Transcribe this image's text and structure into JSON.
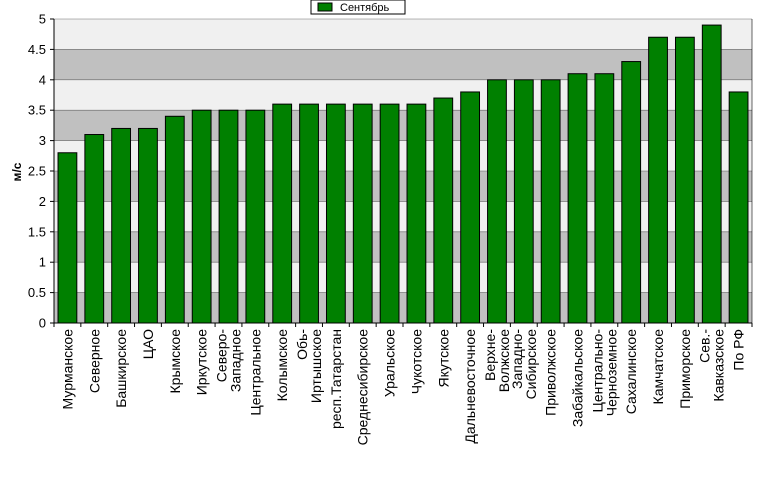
{
  "chart_data": {
    "type": "bar",
    "title": "",
    "xlabel": "",
    "ylabel": "м/с",
    "ylim": [
      0,
      5
    ],
    "yticks": [
      "0",
      "0.5",
      "1",
      "1.5",
      "2",
      "2.5",
      "3",
      "3.5",
      "4",
      "4.5",
      "5"
    ],
    "grid": true,
    "legend_position": "top-center",
    "categories": [
      "Мурманское",
      "Северное",
      "Башкирское",
      "ЦАО",
      "Крымское",
      "Иркутское",
      "Северо-\nЗападное",
      "Центральное",
      "Колымское",
      "Обь-\nИртышское",
      "респ.Татарстан",
      "Среднесибирское",
      "Уральское",
      "Чукотское",
      "Якутское",
      "Дальневосточное",
      "Верхне-\nВолжское",
      "Западно-\nСибирское",
      "Приволжское",
      "Забайкальское",
      "Центрально-\nЧерноземное",
      "Сахалинское",
      "Камчатское",
      "Приморское",
      "Сев.-\nКавказское",
      "По РФ"
    ],
    "series": [
      {
        "name": "Сентябрь",
        "color": "#008000",
        "values": [
          2.8,
          3.1,
          3.2,
          3.2,
          3.4,
          3.5,
          3.5,
          3.5,
          3.6,
          3.6,
          3.6,
          3.6,
          3.6,
          3.6,
          3.7,
          3.8,
          4.0,
          4.0,
          4.0,
          4.1,
          4.1,
          4.3,
          4.7,
          4.7,
          4.9,
          3.8
        ]
      }
    ],
    "colors": {
      "plot_background": "#c0c0c0",
      "plot_band": "#f0f0f0",
      "grid": "#000000",
      "bar_border": "#000000"
    }
  }
}
